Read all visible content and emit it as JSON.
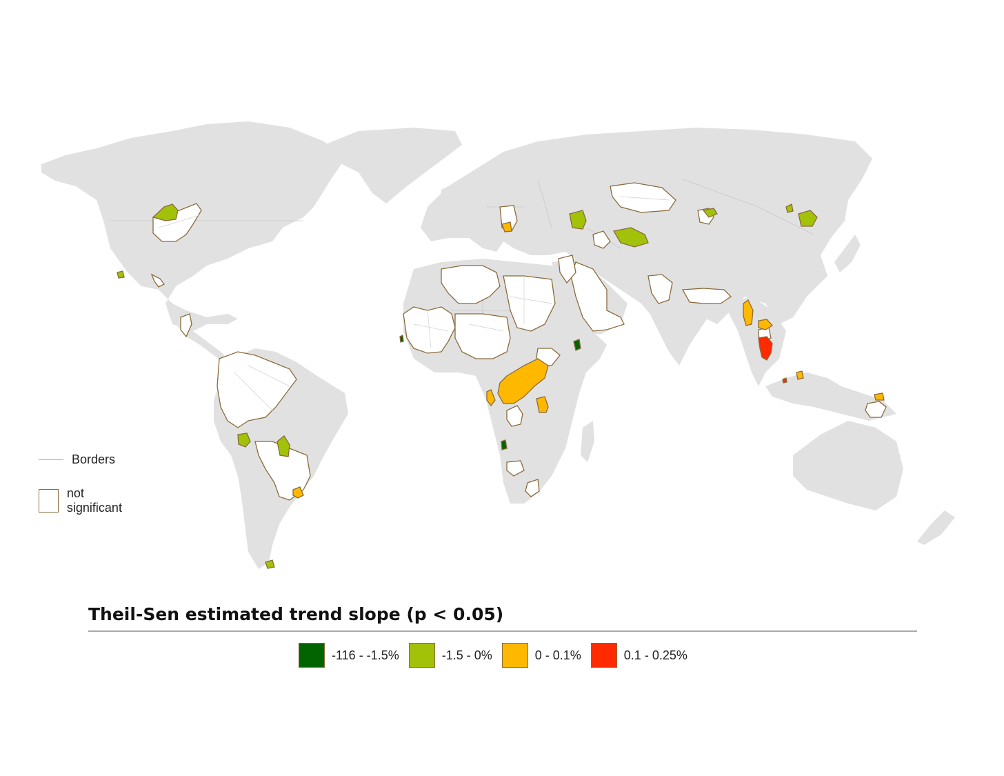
{
  "legend": {
    "borders_label": "Borders",
    "not_significant_label": "not significant"
  },
  "title": "Theil-Sen estimated trend slope (p < 0.05)",
  "classes": [
    {
      "label": "-116 - -1.5%",
      "color": "#006400"
    },
    {
      "label": "-1.5 - 0%",
      "color": "#a2c20a"
    },
    {
      "label": "0 - 0.1%",
      "color": "#ffb800"
    },
    {
      "label": "0.1 - 0.25%",
      "color": "#ff2a00"
    }
  ],
  "colors": {
    "land": "#e1e1e1",
    "not_significant_fill": "#ffffff",
    "region_outline": "#8a6a3a"
  }
}
